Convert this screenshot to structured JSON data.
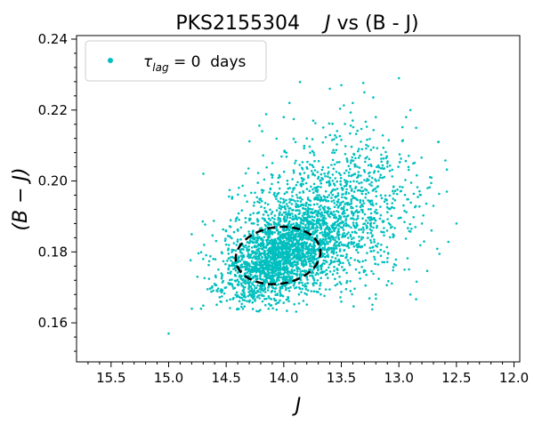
{
  "chart_data": {
    "type": "scatter",
    "title": "PKS2155304    J vs (B - J)",
    "title_parts": {
      "source": "PKS2155304",
      "x_var": "J",
      "rest": " vs (B - J)"
    },
    "xlabel": "J",
    "ylabel": "(B − J)",
    "xlim": [
      15.8,
      11.95
    ],
    "ylim": [
      0.149,
      0.241
    ],
    "x_inverted": true,
    "xticks": [
      15.5,
      15.0,
      14.5,
      14.0,
      13.5,
      13.0,
      12.5,
      12.0
    ],
    "xtick_labels": [
      "15.5",
      "15.0",
      "14.5",
      "14.0",
      "13.5",
      "13.0",
      "12.5",
      "12.0"
    ],
    "yticks": [
      0.16,
      0.18,
      0.2,
      0.22,
      0.24
    ],
    "ytick_labels": [
      "0.16",
      "0.18",
      "0.20",
      "0.22",
      "0.24"
    ],
    "grid": false,
    "legend": {
      "placement": "top-left",
      "label_symbol": "τ",
      "label_subscript": "lag",
      "label_rest": " = 0  days"
    },
    "series": [
      {
        "marker_color": "#00bfbf",
        "description_points": [
          [
            15.0,
            0.157
          ],
          [
            14.8,
            0.185
          ],
          [
            14.75,
            0.173
          ],
          [
            14.7,
            0.178
          ],
          [
            14.6,
            0.171
          ],
          [
            14.55,
            0.166
          ],
          [
            14.4,
            0.164
          ],
          [
            14.3,
            0.17
          ],
          [
            14.25,
            0.184
          ],
          [
            14.2,
            0.195
          ],
          [
            14.1,
            0.201
          ],
          [
            14.0,
            0.218
          ],
          [
            13.95,
            0.222
          ],
          [
            13.8,
            0.212
          ],
          [
            13.6,
            0.226
          ],
          [
            13.5,
            0.227
          ],
          [
            13.4,
            0.222
          ],
          [
            13.3,
            0.225
          ],
          [
            13.2,
            0.218
          ],
          [
            13.1,
            0.205
          ],
          [
            13.05,
            0.195
          ],
          [
            13.0,
            0.229
          ],
          [
            12.9,
            0.22
          ],
          [
            12.85,
            0.215
          ],
          [
            12.95,
            0.175
          ],
          [
            12.9,
            0.168
          ],
          [
            12.8,
            0.188
          ],
          [
            12.75,
            0.198
          ],
          [
            12.7,
            0.193
          ],
          [
            12.5,
            0.188
          ],
          [
            13.2,
            0.168
          ],
          [
            13.5,
            0.166
          ],
          [
            13.8,
            0.168
          ],
          [
            14.1,
            0.169
          ]
        ],
        "core": {
          "x_center": 14.0,
          "y_center": 0.178,
          "n_points": 3200
        }
      }
    ],
    "annotations": [
      {
        "type": "dashed-ellipse",
        "x_center": 14.05,
        "y_center": 0.179,
        "x_halfwidth": 0.37,
        "y_halfheight": 0.008,
        "color": "#000000"
      }
    ]
  }
}
